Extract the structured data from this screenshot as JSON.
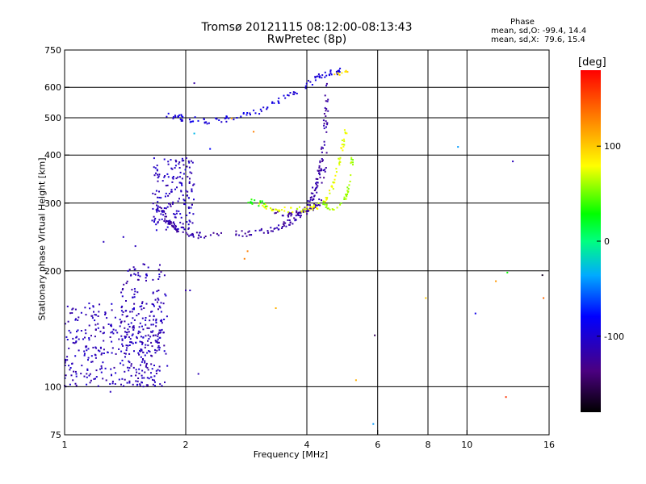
{
  "header": {
    "title_line1": "Tromsø 20121115 08:12:00-08:13:43",
    "title_line2": "RwPretec (8p)"
  },
  "phase_box": {
    "title": "Phase",
    "o_line": "mean, sd,O: -99.4, 14.4",
    "x_line": "mean, sd,X:  79.6, 15.4"
  },
  "colorbar": {
    "unit": "[deg]",
    "range": [
      -180,
      180
    ],
    "ticks": [
      100,
      0,
      -100
    ],
    "tick_labels": [
      "100",
      "0",
      "-100"
    ]
  },
  "chart_data": {
    "type": "scatter",
    "title": "Tromsø 20121115 08:12:00-08:13:43",
    "subtitle": "RwPretec (8p)",
    "xlabel": "Frequency [MHz]",
    "ylabel": "Stationary phase Virtual Height [km]",
    "x_scale": "log",
    "y_scale": "log",
    "xlim": [
      1,
      16
    ],
    "ylim": [
      75,
      750
    ],
    "x_ticks": [
      1,
      2,
      4,
      6,
      8,
      10,
      16
    ],
    "x_tick_labels": [
      "1",
      "2",
      "4",
      "6",
      "8",
      "10",
      "16"
    ],
    "y_ticks": [
      75,
      100,
      200,
      300,
      400,
      500,
      600,
      750
    ],
    "y_tick_labels": [
      "75",
      "100",
      "200",
      "300",
      "400",
      "500",
      "600",
      "750"
    ],
    "grid": true,
    "color_by": "phase_deg",
    "traces": [
      {
        "mode": "cloud",
        "phase": -110,
        "f": [
          1.0,
          1.75
        ],
        "h": [
          100,
          165
        ],
        "n": 340
      },
      {
        "mode": "cloud",
        "phase": -112,
        "f": [
          1.38,
          1.8
        ],
        "h": [
          100,
          210
        ],
        "n": 160
      },
      {
        "mode": "cloud",
        "phase": -108,
        "f": [
          1.65,
          2.1
        ],
        "h": [
          255,
          395
        ],
        "n": 180
      },
      {
        "mode": "curve",
        "phase": -120,
        "f": [
          1.72,
          1.82,
          1.95,
          2.1,
          2.5,
          3.0,
          3.4,
          3.7,
          3.95,
          4.1,
          4.25,
          4.4,
          4.5
        ],
        "h": [
          290,
          265,
          252,
          247,
          248,
          252,
          258,
          270,
          285,
          305,
          340,
          420,
          560
        ],
        "n": 190,
        "spread": 0.012
      },
      {
        "mode": "curve",
        "phase": -122,
        "f": [
          3.3,
          3.6,
          3.9,
          4.1,
          4.3,
          4.45,
          4.5
        ],
        "h": [
          285,
          280,
          285,
          290,
          300,
          380,
          660
        ],
        "n": 60,
        "spread": 0.01
      },
      {
        "mode": "curve",
        "phase": -95,
        "f": [
          1.8,
          2.0,
          2.3,
          2.6,
          3.0,
          3.5,
          4.0,
          4.3,
          4.6,
          4.9
        ],
        "h": [
          510,
          495,
          490,
          500,
          520,
          560,
          610,
          640,
          655,
          660
        ],
        "n": 110,
        "spread": 0.012
      },
      {
        "mode": "curve",
        "phase": 75,
        "f": [
          3.0,
          3.3,
          3.7,
          4.1,
          4.4,
          4.6,
          4.75,
          4.9,
          5.0
        ],
        "h": [
          300,
          290,
          288,
          290,
          300,
          320,
          360,
          410,
          470
        ],
        "n": 90,
        "spread": 0.01
      },
      {
        "mode": "curve",
        "phase": 60,
        "f": [
          4.4,
          4.6,
          4.8,
          5.0,
          5.15,
          5.2
        ],
        "h": [
          300,
          290,
          290,
          310,
          360,
          400
        ],
        "n": 40,
        "spread": 0.008
      },
      {
        "mode": "curve",
        "phase": 30,
        "f": [
          2.85,
          3.0,
          3.2
        ],
        "h": [
          305,
          300,
          298
        ],
        "n": 14,
        "spread": 0.01
      },
      {
        "mode": "curve",
        "phase": 95,
        "f": [
          4.7,
          4.85,
          5.0,
          5.05
        ],
        "h": [
          640,
          650,
          660,
          665
        ],
        "n": 10,
        "spread": 0.008
      }
    ],
    "points": [
      {
        "f": 1.25,
        "h": 238,
        "phase": -110
      },
      {
        "f": 1.4,
        "h": 245,
        "phase": -108
      },
      {
        "f": 1.5,
        "h": 232,
        "phase": -110
      },
      {
        "f": 2.1,
        "h": 615,
        "phase": -120
      },
      {
        "f": 2.0,
        "h": 178,
        "phase": -118
      },
      {
        "f": 2.05,
        "h": 178,
        "phase": -112
      },
      {
        "f": 2.15,
        "h": 108,
        "phase": -112
      },
      {
        "f": 1.3,
        "h": 97,
        "phase": -110
      },
      {
        "f": 2.1,
        "h": 455,
        "phase": -30
      },
      {
        "f": 2.3,
        "h": 415,
        "phase": -80
      },
      {
        "f": 2.6,
        "h": 498,
        "phase": 120
      },
      {
        "f": 2.95,
        "h": 460,
        "phase": 130
      },
      {
        "f": 2.8,
        "h": 215,
        "phase": 130
      },
      {
        "f": 2.85,
        "h": 225,
        "phase": 130
      },
      {
        "f": 3.35,
        "h": 160,
        "phase": 110
      },
      {
        "f": 5.9,
        "h": 136,
        "phase": -150
      },
      {
        "f": 5.85,
        "h": 80,
        "phase": -40
      },
      {
        "f": 5.3,
        "h": 104,
        "phase": 110
      },
      {
        "f": 7.9,
        "h": 170,
        "phase": 100
      },
      {
        "f": 9.5,
        "h": 420,
        "phase": -40
      },
      {
        "f": 10.5,
        "h": 155,
        "phase": -90
      },
      {
        "f": 11.8,
        "h": 188,
        "phase": 120
      },
      {
        "f": 12.5,
        "h": 94,
        "phase": 160
      },
      {
        "f": 12.6,
        "h": 198,
        "phase": 30
      },
      {
        "f": 13.0,
        "h": 385,
        "phase": -110
      },
      {
        "f": 15.4,
        "h": 195,
        "phase": -170
      },
      {
        "f": 15.5,
        "h": 170,
        "phase": 140
      }
    ]
  }
}
